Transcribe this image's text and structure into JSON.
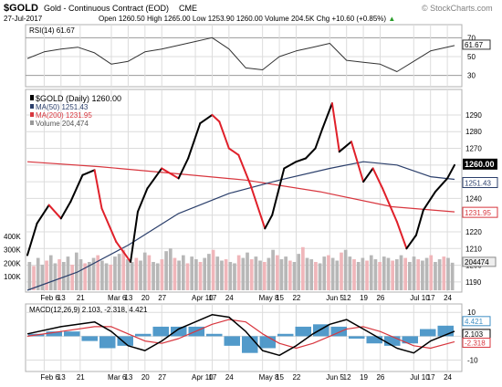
{
  "header": {
    "symbol": "$GOLD",
    "description": "Gold - Continuous Contract (EOD)",
    "exchange": "CME",
    "watermark": "© StockCharts.com",
    "date": "27-Jul-2017",
    "quote": {
      "open_label": "Open",
      "open": "1260.50",
      "high_label": "High",
      "high": "1265.00",
      "low_label": "Low",
      "low": "1253.90",
      "close": "1260.00",
      "volume_label": "Volume",
      "volume": "204.5K",
      "chg_label": "Chg",
      "chg": "+10.60 (+0.85%)"
    },
    "up_arrow": "▲"
  },
  "colors": {
    "price": "#000000",
    "price_pullback": "#e0202a",
    "ma50": "#2b3f6b",
    "ma200": "#d8363e",
    "volume_up": "#b7b7b7",
    "volume_down": "#f0b6ba",
    "macd_hist": "#3f8fc4",
    "macd_line": "#000000",
    "macd_signal": "#d8363e",
    "grid": "#dcdcdc",
    "current_price_box": "#000000"
  },
  "chart_data": [
    {
      "type": "line",
      "panel": "RSI",
      "title": "RSI(14) 61.67",
      "ylim": [
        20,
        80
      ],
      "y_ticks": [
        30,
        50,
        70
      ],
      "reference_lines": [
        30,
        70
      ],
      "last_value_label": "61.67",
      "x": [
        "2017-01-30",
        "2017-02-06",
        "2017-02-13",
        "2017-02-20",
        "2017-02-27",
        "2017-03-06",
        "2017-03-13",
        "2017-03-20",
        "2017-03-27",
        "2017-04-03",
        "2017-04-10",
        "2017-04-17",
        "2017-04-24",
        "2017-05-01",
        "2017-05-08",
        "2017-05-15",
        "2017-05-22",
        "2017-05-29",
        "2017-06-05",
        "2017-06-12",
        "2017-06-19",
        "2017-06-26",
        "2017-07-03",
        "2017-07-10",
        "2017-07-17",
        "2017-07-27"
      ],
      "values": [
        48,
        55,
        58,
        60,
        54,
        42,
        45,
        55,
        58,
        62,
        66,
        70,
        58,
        38,
        36,
        50,
        56,
        60,
        64,
        46,
        44,
        42,
        34,
        45,
        56,
        61.67
      ]
    },
    {
      "type": "line",
      "panel": "Price",
      "title": "$GOLD (Daily) 1260.00",
      "ylim": [
        1185,
        1302
      ],
      "y_ticks": [
        1190,
        1200,
        1210,
        1220,
        1230,
        1240,
        1250,
        1260,
        1270,
        1280,
        1290
      ],
      "y_tick_labels": [
        "1190",
        "1200",
        "1210",
        "1220",
        "1230",
        "1240",
        "1250",
        "",
        "1270",
        "1280",
        "1290"
      ],
      "price_labels": {
        "close": "1260.00",
        "ma50": "1251.43",
        "ma200": "1231.95"
      },
      "x_tick_labels": [
        "Feb 6",
        "13",
        "21",
        "Mar 6",
        "13",
        "20",
        "27",
        "Apr 10",
        "17",
        "24",
        "May 8",
        "15",
        "22",
        "Jun 5",
        "12",
        "19",
        "26",
        "Jul 10",
        "17",
        "24"
      ],
      "x_tick_positions": [
        "2017-02-06",
        "2017-02-13",
        "2017-02-21",
        "2017-03-06",
        "2017-03-13",
        "2017-03-20",
        "2017-03-27",
        "2017-04-10",
        "2017-04-17",
        "2017-04-24",
        "2017-05-08",
        "2017-05-15",
        "2017-05-22",
        "2017-06-05",
        "2017-06-12",
        "2017-06-19",
        "2017-06-26",
        "2017-07-10",
        "2017-07-17",
        "2017-07-24"
      ],
      "x_month_labels": [
        "Feb",
        "Mar",
        "Apr",
        "May",
        "Jun",
        "Jul"
      ],
      "x_month_positions": [
        "2017-02-01",
        "2017-03-01",
        "2017-04-03",
        "2017-05-01",
        "2017-06-01",
        "2017-07-03"
      ],
      "series": [
        {
          "name": "$GOLD (Daily) 1260.00",
          "x": [
            "2017-01-30",
            "2017-02-03",
            "2017-02-08",
            "2017-02-13",
            "2017-02-17",
            "2017-02-22",
            "2017-02-27",
            "2017-03-02",
            "2017-03-08",
            "2017-03-14",
            "2017-03-17",
            "2017-03-21",
            "2017-03-27",
            "2017-04-03",
            "2017-04-07",
            "2017-04-12",
            "2017-04-17",
            "2017-04-20",
            "2017-04-24",
            "2017-04-28",
            "2017-05-03",
            "2017-05-09",
            "2017-05-12",
            "2017-05-17",
            "2017-05-22",
            "2017-05-26",
            "2017-05-30",
            "2017-06-02",
            "2017-06-06",
            "2017-06-09",
            "2017-06-14",
            "2017-06-19",
            "2017-06-23",
            "2017-06-27",
            "2017-07-03",
            "2017-07-07",
            "2017-07-11",
            "2017-07-14",
            "2017-07-19",
            "2017-07-24",
            "2017-07-27"
          ],
          "values": [
            1206,
            1225,
            1236,
            1228,
            1238,
            1254,
            1257,
            1234,
            1214,
            1202,
            1232,
            1246,
            1258,
            1252,
            1264,
            1285,
            1290,
            1286,
            1270,
            1266,
            1248,
            1222,
            1230,
            1258,
            1262,
            1264,
            1270,
            1282,
            1297,
            1268,
            1274,
            1250,
            1258,
            1246,
            1226,
            1210,
            1218,
            1233,
            1244,
            1252,
            1260
          ]
        },
        {
          "name": "MA(50) 1251.43",
          "x": [
            "2017-01-30",
            "2017-02-20",
            "2017-03-13",
            "2017-04-03",
            "2017-04-24",
            "2017-05-15",
            "2017-06-05",
            "2017-06-19",
            "2017-07-03",
            "2017-07-17",
            "2017-07-27"
          ],
          "values": [
            1185,
            1196,
            1212,
            1231,
            1243,
            1251,
            1258,
            1262,
            1260,
            1253,
            1251.43
          ]
        },
        {
          "name": "MA(200) 1231.95",
          "x": [
            "2017-01-30",
            "2017-03-01",
            "2017-04-01",
            "2017-05-01",
            "2017-06-01",
            "2017-07-01",
            "2017-07-27"
          ],
          "values": [
            1262,
            1259,
            1255,
            1251,
            1244,
            1235,
            1231.95
          ]
        }
      ]
    },
    {
      "type": "bar",
      "panel": "Volume",
      "title": "Volume 204,474",
      "y_ticks": [
        100000,
        200000,
        300000,
        400000
      ],
      "y_tick_labels": [
        "100K",
        "200K",
        "300K",
        "400K"
      ],
      "last_value_label": "204474",
      "values": [
        210,
        180,
        240,
        190,
        220,
        260,
        200,
        230,
        210,
        250,
        190,
        280,
        230,
        200,
        210,
        240,
        260,
        220,
        200,
        190,
        250,
        270,
        300,
        230,
        210,
        240,
        220,
        280,
        260,
        210,
        200,
        230,
        290,
        310,
        240,
        220,
        260,
        200,
        250,
        230,
        210,
        240,
        270,
        300,
        250,
        220,
        230,
        210,
        200,
        260,
        240,
        280,
        230,
        250,
        220,
        210,
        240,
        300,
        260,
        230,
        250,
        220,
        210,
        270,
        320,
        240,
        230,
        210,
        200,
        250,
        260,
        240,
        220,
        280,
        300,
        250,
        230,
        210,
        240,
        220,
        260,
        230,
        210,
        250,
        240,
        220,
        230,
        260,
        240,
        210,
        250,
        230,
        220,
        240,
        260,
        210,
        230,
        250,
        240,
        204.474
      ],
      "value_units": "thousand contracts"
    },
    {
      "type": "line",
      "panel": "MACD",
      "title": "MACD(12,26,9) 2.103, -2.318, 4.421",
      "ylim": [
        -14,
        12
      ],
      "y_ticks": [
        -10,
        0,
        10
      ],
      "last_value_labels": [
        "4.421",
        "2.103",
        "-2.318"
      ],
      "x": [
        "2017-01-30",
        "2017-02-13",
        "2017-02-27",
        "2017-03-06",
        "2017-03-13",
        "2017-03-20",
        "2017-03-27",
        "2017-04-03",
        "2017-04-10",
        "2017-04-17",
        "2017-04-24",
        "2017-05-01",
        "2017-05-08",
        "2017-05-15",
        "2017-05-22",
        "2017-05-29",
        "2017-06-05",
        "2017-06-12",
        "2017-06-19",
        "2017-06-26",
        "2017-07-03",
        "2017-07-10",
        "2017-07-17",
        "2017-07-27"
      ],
      "series": [
        {
          "name": "MACD",
          "values": [
            1,
            4,
            6,
            2,
            -4,
            -6,
            -2,
            3,
            6,
            9,
            8,
            2,
            -6,
            -8,
            -4,
            1,
            5,
            7,
            3,
            -1,
            -5,
            -7,
            -2,
            2.103
          ]
        },
        {
          "name": "Signal",
          "values": [
            0,
            2,
            4,
            4,
            1,
            -2,
            -3,
            -1,
            2,
            5,
            7,
            6,
            1,
            -3,
            -5,
            -3,
            0,
            3,
            4,
            2,
            -1,
            -4,
            -5,
            -2.318
          ]
        },
        {
          "name": "Histogram",
          "values": [
            1,
            2,
            2,
            -2,
            -5,
            -4,
            1,
            4,
            4,
            4,
            1,
            -4,
            -7,
            -5,
            1,
            4,
            5,
            4,
            -1,
            -3,
            -4,
            -3,
            3,
            4.421
          ]
        }
      ],
      "x_tick_labels": [
        "Feb 6",
        "13",
        "21",
        "Mar 6",
        "13",
        "20",
        "27",
        "Apr 10",
        "17",
        "24",
        "May 8",
        "15",
        "22",
        "Jun 5",
        "12",
        "19",
        "26",
        "Jul 10",
        "17",
        "24"
      ]
    }
  ]
}
